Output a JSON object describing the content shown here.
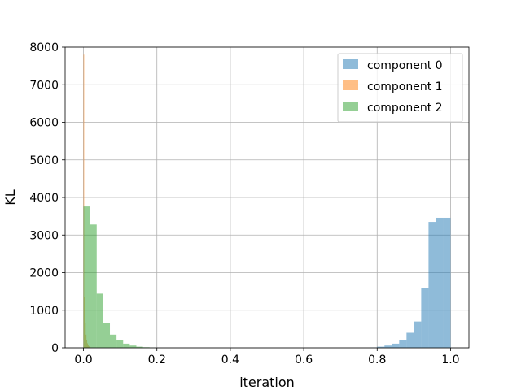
{
  "chart_data": {
    "type": "bar",
    "subtype": "histogram",
    "title": "",
    "xlabel": "iteration",
    "ylabel": "KL",
    "xlim": [
      -0.05,
      1.05
    ],
    "ylim": [
      0,
      8000
    ],
    "xticks": [
      "0.0",
      "0.2",
      "0.4",
      "0.6",
      "0.8",
      "1.0"
    ],
    "xtick_values": [
      0.0,
      0.2,
      0.4,
      0.6,
      0.8,
      1.0
    ],
    "yticks": [
      "0",
      "1000",
      "2000",
      "3000",
      "4000",
      "5000",
      "6000",
      "7000",
      "8000"
    ],
    "ytick_values": [
      0,
      1000,
      2000,
      3000,
      4000,
      5000,
      6000,
      7000,
      8000
    ],
    "grid": true,
    "legend_position": "top-right",
    "series": [
      {
        "name": "component 0",
        "color": "#1f77b4",
        "alpha": 0.5,
        "bin_edges": [
          0.78,
          0.8,
          0.82,
          0.84,
          0.86,
          0.88,
          0.9,
          0.92,
          0.94,
          0.96,
          0.98,
          1.0
        ],
        "counts": [
          10,
          30,
          60,
          110,
          200,
          400,
          700,
          1580,
          3350,
          3460,
          3460
        ]
      },
      {
        "name": "component 1",
        "color": "#ff7f0e",
        "alpha": 0.5,
        "bin_edges": [
          0.0,
          0.002,
          0.004,
          0.006,
          0.008,
          0.01,
          0.012,
          0.014,
          0.016,
          0.018,
          0.02,
          0.022
        ],
        "counts": [
          7800,
          1350,
          650,
          350,
          200,
          120,
          70,
          40,
          20,
          10,
          5
        ]
      },
      {
        "name": "component 2",
        "color": "#2ca02c",
        "alpha": 0.5,
        "bin_edges": [
          0.0,
          0.018,
          0.036,
          0.054,
          0.072,
          0.09,
          0.108,
          0.126,
          0.144,
          0.162,
          0.18,
          0.198
        ],
        "counts": [
          3760,
          3280,
          1440,
          660,
          350,
          200,
          110,
          60,
          30,
          15,
          5
        ]
      }
    ]
  }
}
